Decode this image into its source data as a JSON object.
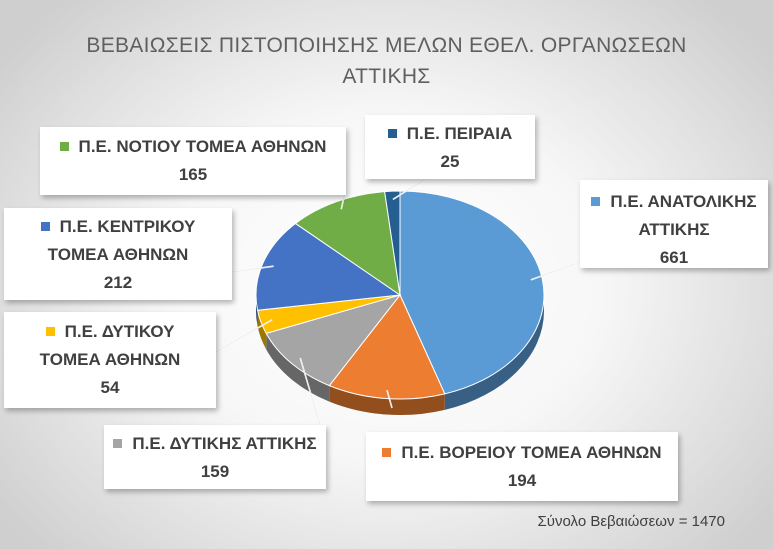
{
  "chart_data": {
    "type": "pie",
    "title_lines": [
      "ΒΕΒΑΙΩΣΕΙΣ ΠΙΣΤΟΠΟΙΗΣΗΣ ΜΕΛΩΝ ΕΘΕΛ. ΟΡΓΑΝΩΣΕΩΝ",
      "ΑΤΤΙΚΗΣ"
    ],
    "slices": [
      {
        "label_lines": [
          "Π.Ε. ΑΝΑΤΟΛΙΚΗΣ",
          "ΑΤΤΙΚΗΣ"
        ],
        "value": 661,
        "value_text": "661",
        "color": "#5b9bd5"
      },
      {
        "label_lines": [
          "Π.Ε. ΒΟΡΕΙΟΥ ΤΟΜΕΑ ΑΘΗΝΩΝ"
        ],
        "value": 194,
        "value_text": "194",
        "color": "#ed7d31"
      },
      {
        "label_lines": [
          "Π.Ε. ΔΥΤΙΚΗΣ ΑΤΤΙΚΗΣ"
        ],
        "value": 159,
        "value_text": "159",
        "color": "#a5a5a5"
      },
      {
        "label_lines": [
          "Π.Ε. ΔΥΤΙΚΟΥ",
          "ΤΟΜΕΑ ΑΘΗΝΩΝ"
        ],
        "value": 54,
        "value_text": "54",
        "color": "#ffc000"
      },
      {
        "label_lines": [
          "Π.Ε. ΚΕΝΤΡΙΚΟΥ",
          "ΤΟΜΕΑ ΑΘΗΝΩΝ"
        ],
        "value": 212,
        "value_text": "212",
        "color": "#4472c4"
      },
      {
        "label_lines": [
          "Π.Ε. ΝΟΤΙΟΥ ΤΟΜΕΑ ΑΘΗΝΩΝ"
        ],
        "value": 165,
        "value_text": "165",
        "color": "#70ad47"
      },
      {
        "label_lines": [
          "Π.Ε. ΠΕΙΡΑΙΑ"
        ],
        "value": 25,
        "value_text": "25",
        "color": "#255e91"
      }
    ],
    "legend": "none",
    "total_note": "Σύνολο Βεβαιώσεων = 1470"
  }
}
